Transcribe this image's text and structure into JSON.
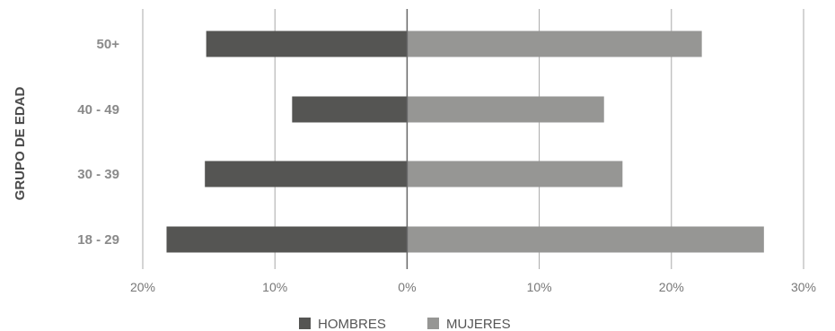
{
  "chart_data": {
    "type": "bar",
    "orientation": "horizontal",
    "stacking": "diverging",
    "ylabel": "GRUPO DE EDAD",
    "categories": [
      "18 - 29",
      "30 - 39",
      "40 - 49",
      "50+"
    ],
    "series": [
      {
        "name": "HOMBRES",
        "values": [
          -18.2,
          -15.3,
          -8.7,
          -15.2
        ],
        "color": "#555553"
      },
      {
        "name": "MUJERES",
        "values": [
          27.0,
          16.3,
          14.9,
          22.3
        ],
        "color": "#969694"
      }
    ],
    "xlim": [
      -20,
      30
    ],
    "xticks": [
      -20,
      -10,
      0,
      10,
      20,
      30
    ],
    "xtick_labels": [
      "20%",
      "10%",
      "0%",
      "10%",
      "20%",
      "30%"
    ],
    "grid": true,
    "legend": "bottom-center"
  }
}
